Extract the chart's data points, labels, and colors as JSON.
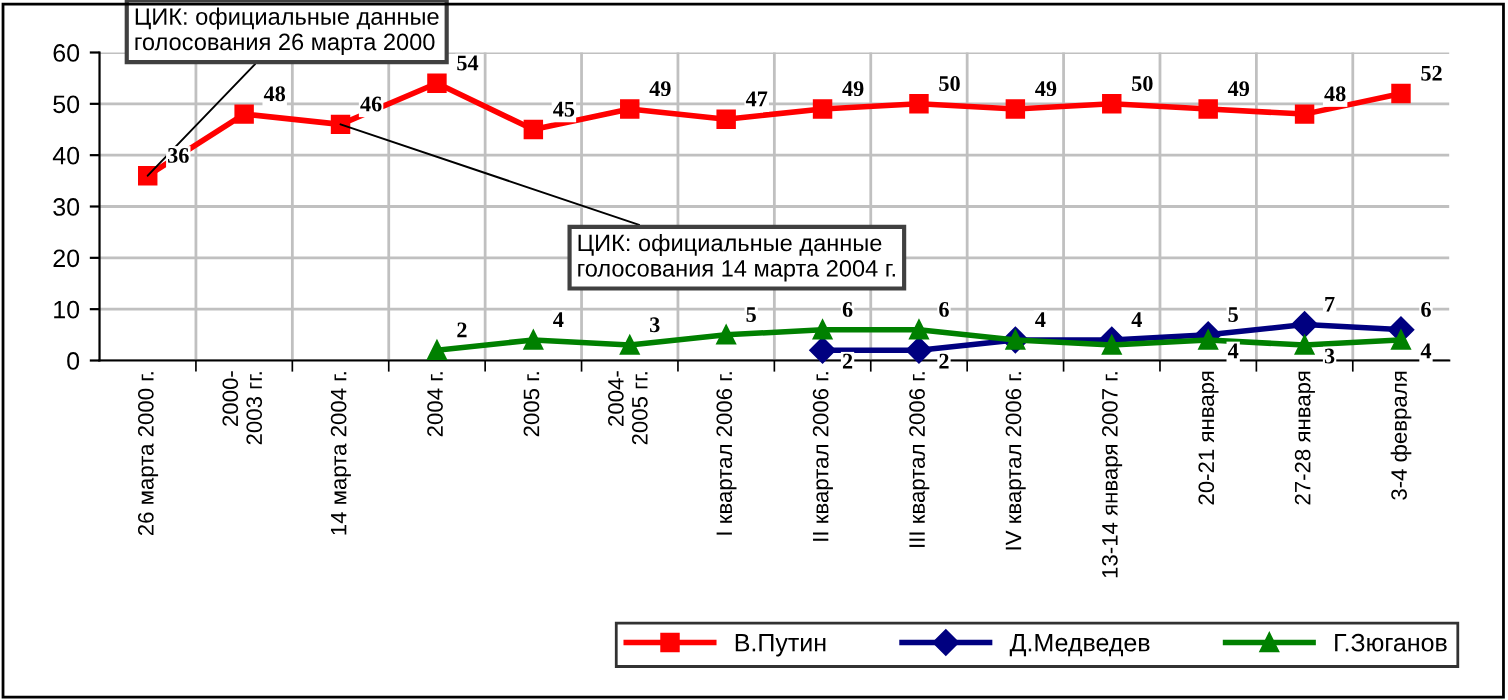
{
  "chart_data": {
    "type": "line",
    "categories": [
      "26 марта 2000 г.",
      "2000-\n2003 гг.",
      "14 марта 2004 г.",
      "2004 г.",
      "2005 г.",
      "2004-\n2005 гг.",
      "I квартал 2006 г.",
      "II квартал 2006 г.",
      "III квартал 2006 г.",
      "IV квартал 2006 г.",
      "13-14 января 2007 г.",
      "20-21 января",
      "27-28 января",
      "3-4 февраля"
    ],
    "series": [
      {
        "name": "В.Путин",
        "color": "#ff0000",
        "marker": "square",
        "values": [
          36,
          48,
          46,
          54,
          45,
          49,
          47,
          49,
          50,
          49,
          50,
          49,
          48,
          52
        ],
        "value_labels": [
          "36",
          "48",
          "46",
          "54",
          "45",
          "49",
          "47",
          "49",
          "50",
          "49",
          "50",
          "49",
          "48",
          "52"
        ]
      },
      {
        "name": "Д.Медведев",
        "color": "#000080",
        "marker": "diamond",
        "values": [
          null,
          null,
          null,
          null,
          null,
          null,
          null,
          2,
          2,
          4,
          4,
          5,
          7,
          6
        ],
        "value_labels": [
          null,
          null,
          null,
          null,
          null,
          null,
          null,
          "2",
          "2",
          "4",
          "4",
          "5",
          "7",
          "6"
        ]
      },
      {
        "name": "Г.Зюганов",
        "color": "#008000",
        "marker": "triangle",
        "values": [
          null,
          null,
          null,
          2,
          4,
          3,
          5,
          6,
          6,
          4,
          3,
          4,
          3,
          4
        ],
        "value_labels": [
          null,
          null,
          null,
          "2",
          "4",
          "3",
          "5",
          "6",
          "6",
          null,
          null,
          "4",
          "3",
          "4"
        ]
      }
    ],
    "ylim": [
      0,
      60
    ],
    "yticks": [
      0,
      10,
      20,
      30,
      40,
      50,
      60
    ],
    "grid": true,
    "legend": "bottom right",
    "annotations": [
      {
        "text": "ЦИК: официальные данные\nголосования 26 марта 2000",
        "x": "26 марта 2000 г.",
        "y": 36
      },
      {
        "text": "ЦИК: официальные данные\nголосования 14 марта 2004 г.",
        "x": "14 марта 2004 г.",
        "y": 46
      }
    ]
  }
}
